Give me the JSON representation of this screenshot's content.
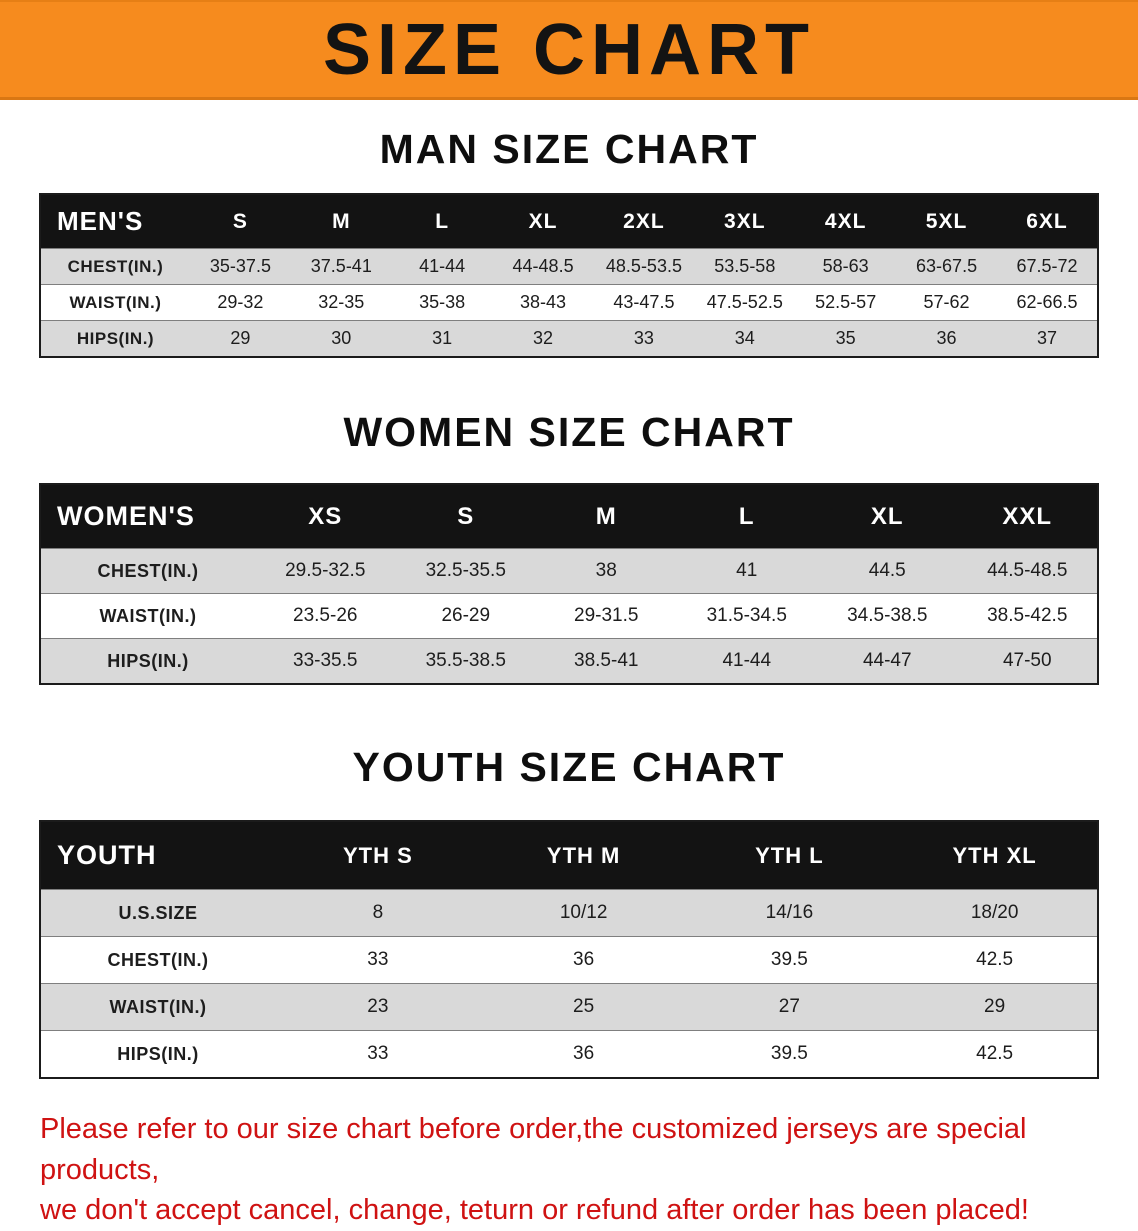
{
  "banner": {
    "title": "SIZE CHART",
    "bg_color": "#f68b1e",
    "text_color": "#131313"
  },
  "sections": [
    {
      "heading": "MAN SIZE CHART",
      "table": {
        "name": "men",
        "header_label": "MEN'S",
        "columns": [
          "S",
          "M",
          "L",
          "XL",
          "2XL",
          "3XL",
          "4XL",
          "5XL",
          "6XL"
        ],
        "rows": [
          {
            "label": "CHEST(IN.)",
            "values": [
              "35-37.5",
              "37.5-41",
              "41-44",
              "44-48.5",
              "48.5-53.5",
              "53.5-58",
              "58-63",
              "63-67.5",
              "67.5-72"
            ]
          },
          {
            "label": "WAIST(IN.)",
            "values": [
              "29-32",
              "32-35",
              "35-38",
              "38-43",
              "43-47.5",
              "47.5-52.5",
              "52.5-57",
              "57-62",
              "62-66.5"
            ]
          },
          {
            "label": "HIPS(IN.)",
            "values": [
              "29",
              "30",
              "31",
              "32",
              "33",
              "34",
              "35",
              "36",
              "37"
            ]
          }
        ]
      }
    },
    {
      "heading": "WOMEN SIZE CHART",
      "table": {
        "name": "women",
        "header_label": "WOMEN'S",
        "columns": [
          "XS",
          "S",
          "M",
          "L",
          "XL",
          "XXL"
        ],
        "rows": [
          {
            "label": "CHEST(IN.)",
            "values": [
              "29.5-32.5",
              "32.5-35.5",
              "38",
              "41",
              "44.5",
              "44.5-48.5"
            ]
          },
          {
            "label": "WAIST(IN.)",
            "values": [
              "23.5-26",
              "26-29",
              "29-31.5",
              "31.5-34.5",
              "34.5-38.5",
              "38.5-42.5"
            ]
          },
          {
            "label": "HIPS(IN.)",
            "values": [
              "33-35.5",
              "35.5-38.5",
              "38.5-41",
              "41-44",
              "44-47",
              "47-50"
            ]
          }
        ]
      }
    },
    {
      "heading": "YOUTH SIZE CHART",
      "table": {
        "name": "youth",
        "header_label": "YOUTH",
        "columns": [
          "YTH S",
          "YTH M",
          "YTH L",
          "YTH XL"
        ],
        "rows": [
          {
            "label": "U.S.SIZE",
            "values": [
              "8",
              "10/12",
              "14/16",
              "18/20"
            ]
          },
          {
            "label": "CHEST(IN.)",
            "values": [
              "33",
              "36",
              "39.5",
              "42.5"
            ]
          },
          {
            "label": "WAIST(IN.)",
            "values": [
              "23",
              "25",
              "27",
              "29"
            ]
          },
          {
            "label": "HIPS(IN.)",
            "values": [
              "33",
              "36",
              "39.5",
              "42.5"
            ]
          }
        ]
      }
    }
  ],
  "footer": {
    "line1": "Please refer to our size chart before order,the customized jerseys are special products,",
    "line2": "we don't accept cancel, change, teturn or refund after order has been placed!",
    "text_color": "#cf1212"
  }
}
